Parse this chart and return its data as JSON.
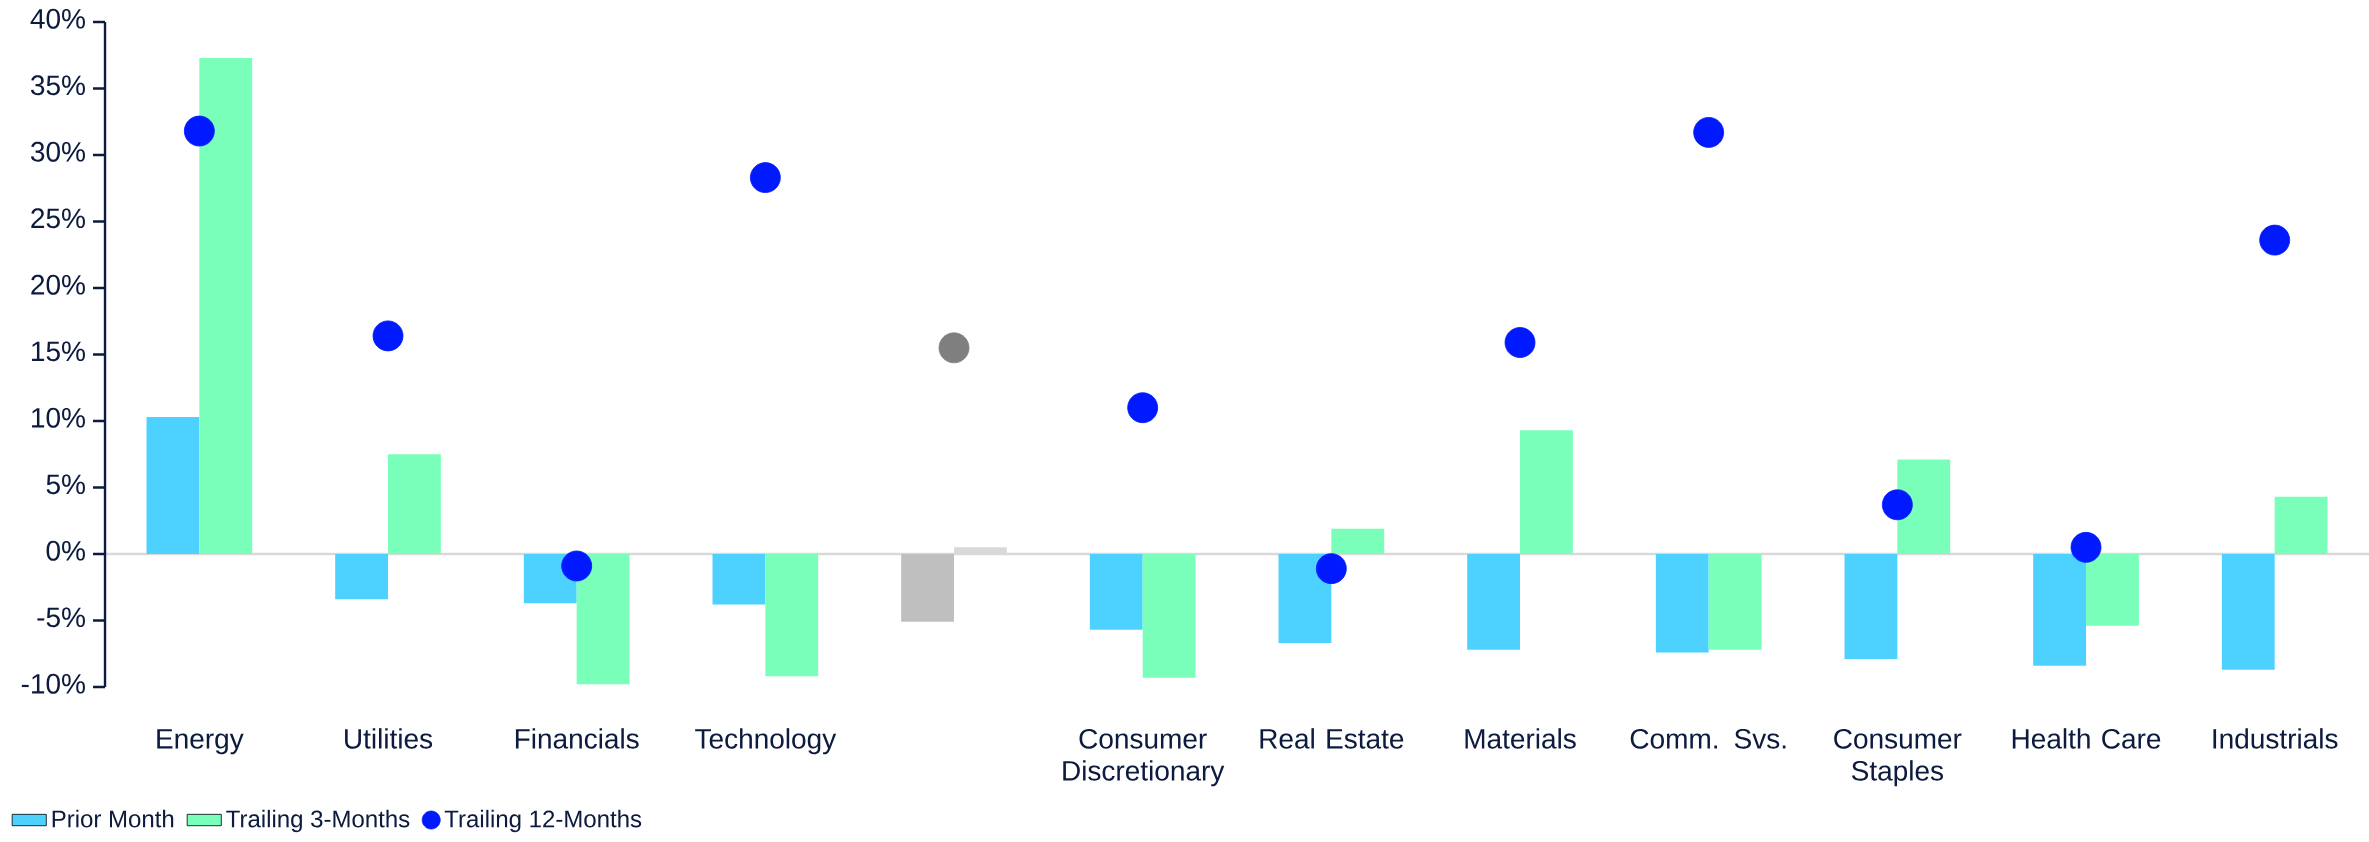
{
  "chart_data": {
    "type": "bar",
    "categories": [
      "Energy",
      "Utilities",
      "Financials",
      "Technology",
      null,
      "Consumer Discretionary",
      "Real Estate",
      "Materials",
      "Comm. Svs.",
      "Consumer Staples",
      "Health Care",
      "Industrials"
    ],
    "series": [
      {
        "name": "Prior Month",
        "color": "#4dd2ff",
        "colors": [
          "#4dd2ff",
          "#4dd2ff",
          "#4dd2ff",
          "#4dd2ff",
          "#bfbfbf",
          "#4dd2ff",
          "#4dd2ff",
          "#4dd2ff",
          "#4dd2ff",
          "#4dd2ff",
          "#4dd2ff",
          "#4dd2ff"
        ],
        "values": [
          10.3,
          -3.4,
          -3.7,
          -3.8,
          -5.1,
          -5.7,
          -6.7,
          -7.2,
          -7.4,
          -7.9,
          -8.4,
          -8.7
        ]
      },
      {
        "name": "Trailing 3-Months",
        "color": "#79ffb9",
        "colors": [
          "#79ffb9",
          "#79ffb9",
          "#79ffb9",
          "#79ffb9",
          "#d9d9d9",
          "#79ffb9",
          "#79ffb9",
          "#79ffb9",
          "#79ffb9",
          "#79ffb9",
          "#79ffb9",
          "#79ffb9"
        ],
        "values": [
          37.3,
          7.5,
          -9.8,
          -9.2,
          0.5,
          -9.3,
          1.9,
          9.3,
          -7.2,
          7.1,
          -5.4,
          4.3
        ]
      },
      {
        "name": "Trailing 12-Months",
        "type": "scatter",
        "marker": "circle",
        "color": "#0019ff",
        "colors": [
          "#0019ff",
          "#0019ff",
          "#0019ff",
          "#0019ff",
          "#7f7f7f",
          "#0019ff",
          "#0019ff",
          "#0019ff",
          "#0019ff",
          "#0019ff",
          "#0019ff",
          "#0019ff"
        ],
        "values": [
          31.8,
          16.4,
          -0.9,
          28.3,
          15.5,
          11.0,
          -1.1,
          15.9,
          31.7,
          3.7,
          0.5,
          23.6
        ]
      }
    ],
    "ylim": [
      -10,
      40
    ],
    "yticks": [
      {
        "value": -10,
        "label": "-10%"
      },
      {
        "value": -5,
        "label": "-5%"
      },
      {
        "value": 0,
        "label": "0%"
      },
      {
        "value": 5,
        "label": "5%"
      },
      {
        "value": 10,
        "label": "10%"
      },
      {
        "value": 15,
        "label": "15%"
      },
      {
        "value": 20,
        "label": "20%"
      },
      {
        "value": 25,
        "label": "25%"
      },
      {
        "value": 30,
        "label": "30%"
      },
      {
        "value": 35,
        "label": "35%"
      },
      {
        "value": 40,
        "label": "40%"
      }
    ],
    "legend": "bottom left"
  }
}
